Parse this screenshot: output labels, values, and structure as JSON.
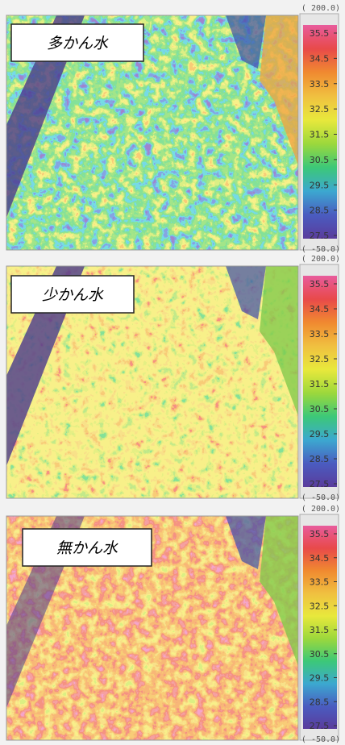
{
  "panels": [
    {
      "label": "多かん水"
    },
    {
      "label": "少かん水"
    },
    {
      "label": "無かん水"
    }
  ],
  "scale": {
    "top": "( 200.0)",
    "bottom": "( -50.0)",
    "ticks": [
      "35.5",
      "34.5",
      "33.5",
      "32.5",
      "31.5",
      "30.5",
      "29.5",
      "28.5",
      "27.5"
    ]
  }
}
